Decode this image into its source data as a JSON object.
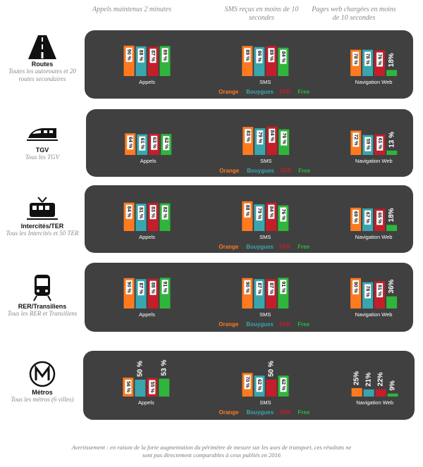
{
  "colors": {
    "Orange": "#ff7a1f",
    "Bouygues": "#3aa5ad",
    "SFR": "#c41e2a",
    "Free": "#2fb53c"
  },
  "headers": [
    "Appels maintenus 2 minutes",
    "SMS reçus en moins de 10 secondes",
    "Pages web chargées en moins de 10 secondes"
  ],
  "legend": [
    "Orange",
    "Bouygues",
    "SFR",
    "Free"
  ],
  "chart_data": [
    {
      "type": "bar",
      "row": "Routes",
      "subtitle": "Toutes les autoroutes et 20 routes secondaires",
      "icon": "road-icon",
      "groups": [
        {
          "label": "Appels",
          "values": [
            90,
            88,
            87,
            89
          ],
          "labels": [
            "90 %",
            "88 %",
            "87 %",
            "89 %"
          ]
        },
        {
          "label": "SMS",
          "values": [
            89,
            86,
            89,
            84
          ],
          "labels": [
            "89 %",
            "86 %",
            "89 %",
            "84 %"
          ]
        },
        {
          "label": "Navigation Web",
          "values": [
            78,
            78,
            76,
            18
          ],
          "labels": [
            "78 %",
            "78 %",
            "76 %",
            "18%"
          ]
        }
      ]
    },
    {
      "type": "bar",
      "row": "TGV",
      "subtitle": "Tous les TGV",
      "icon": "tgv-train-icon",
      "groups": [
        {
          "label": "Appels",
          "values": [
            64,
            61,
            63,
            62
          ],
          "labels": [
            "64 %",
            "61 %",
            "63 %",
            "62 %"
          ]
        },
        {
          "label": "SMS",
          "values": [
            83,
            79,
            84,
            76
          ],
          "labels": [
            "83 %",
            "79 %",
            "84 %",
            "76 %"
          ]
        },
        {
          "label": "Navigation Web",
          "values": [
            72,
            59,
            61,
            13
          ],
          "labels": [
            "72 %",
            "59 %",
            "61 %",
            "13 %"
          ]
        }
      ]
    },
    {
      "type": "bar",
      "row": "Intercités/TER",
      "subtitle": "Tous les Intercités et 50 TER",
      "icon": "intercity-train-icon",
      "groups": [
        {
          "label": "Appels",
          "values": [
            84,
            81,
            83,
            82
          ],
          "labels": [
            "84 %",
            "81 %",
            "83 %",
            "82 %"
          ]
        },
        {
          "label": "SMS",
          "values": [
            88,
            79,
            84,
            76
          ],
          "labels": [
            "88 %",
            "79 %",
            "84 %",
            "76 %"
          ]
        },
        {
          "label": "Navigation Web",
          "values": [
            69,
            67,
            66,
            18
          ],
          "labels": [
            "69 %",
            "67 %",
            "66 %",
            "18%"
          ]
        }
      ]
    },
    {
      "type": "bar",
      "row": "RER/Transiliens",
      "subtitle": "Tous les RER et Transiliens",
      "icon": "rer-train-icon",
      "groups": [
        {
          "label": "Appels",
          "values": [
            90,
            87,
            88,
            91
          ],
          "labels": [
            "90 %",
            "87 %",
            "88 %",
            "91 %"
          ]
        },
        {
          "label": "SMS",
          "values": [
            90,
            87,
            87,
            91
          ],
          "labels": [
            "90 %",
            "87 %",
            "87 %",
            "91 %"
          ]
        },
        {
          "label": "Navigation Web",
          "values": [
            90,
            78,
            81,
            36
          ],
          "labels": [
            "90 %",
            "78 %",
            "81 %",
            "36%"
          ]
        }
      ]
    },
    {
      "type": "bar",
      "row": "Métros",
      "subtitle": "Tous les métros (6 villes)",
      "icon": "metro-m-icon",
      "groups": [
        {
          "label": "Appels",
          "values": [
            56,
            50,
            55,
            53
          ],
          "labels": [
            "56 %",
            "50 %",
            "55 %",
            "53 %"
          ]
        },
        {
          "label": "SMS",
          "values": [
            70,
            62,
            50,
            62
          ],
          "labels": [
            "70 %",
            "62 %",
            "50 %",
            "62 %"
          ]
        },
        {
          "label": "Navigation Web",
          "values": [
            25,
            21,
            22,
            9
          ],
          "labels": [
            "25%",
            "21%",
            "22%",
            "9%"
          ]
        }
      ]
    }
  ],
  "footnote": "Avertissement : en raison de la forte augmentation du périmètre de mesure sur les axes de transport, ces résultats ne sont pas directement comparables à ceux publiés en 2016"
}
